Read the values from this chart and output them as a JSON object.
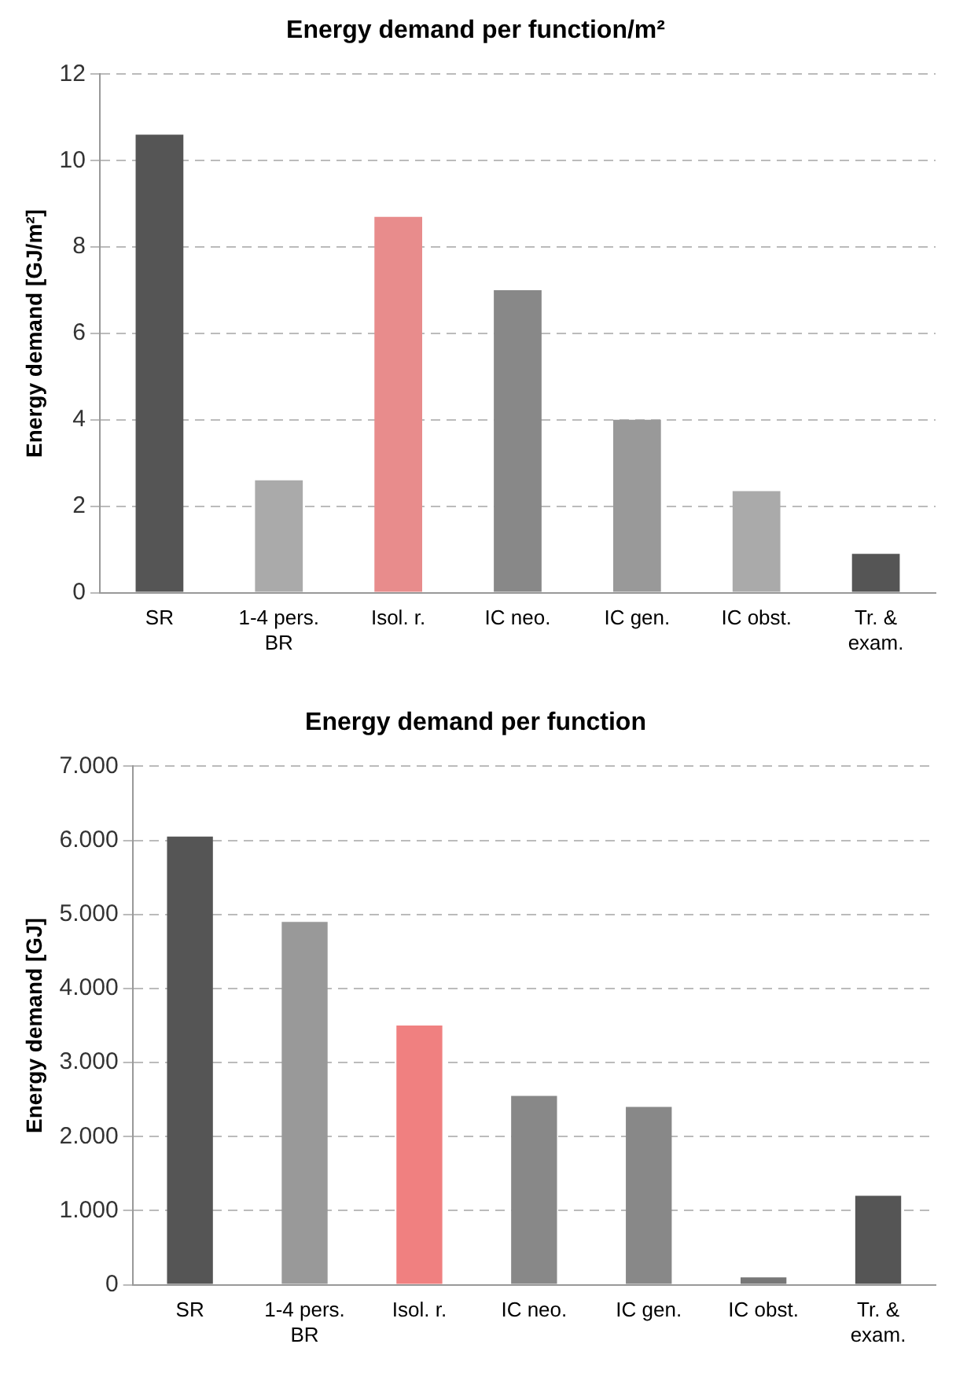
{
  "chart_data": [
    {
      "type": "bar",
      "title": "Energy demand per function/m²",
      "ylabel": "Energy demand [GJ/m²]",
      "categories": [
        "SR",
        "1-4 pers. BR",
        "Isol. r.",
        "IC neo.",
        "IC gen.",
        "IC obst.",
        "Tr. & exam."
      ],
      "values": [
        10.6,
        2.6,
        8.7,
        7.0,
        4.0,
        2.35,
        0.9
      ],
      "colors": [
        "#555555",
        "#aaaaaa",
        "#e88c8c",
        "#888888",
        "#999999",
        "#aaaaaa",
        "#555555"
      ],
      "ylim": [
        0,
        12
      ],
      "yticks": [
        0,
        2,
        4,
        6,
        8,
        10,
        12
      ],
      "grid": "y"
    },
    {
      "type": "bar",
      "title": "Energy demand per function",
      "ylabel": "Energy demand [GJ]",
      "categories": [
        "SR",
        "1-4 pers. BR",
        "Isol. r.",
        "IC neo.",
        "IC gen.",
        "IC obst.",
        "Tr. & exam."
      ],
      "values": [
        6050,
        4900,
        3500,
        2550,
        2400,
        100,
        1200
      ],
      "colors": [
        "#555555",
        "#999999",
        "#f08080",
        "#888888",
        "#888888",
        "#777777",
        "#555555"
      ],
      "ylim": [
        0,
        7000
      ],
      "yticks": [
        0,
        {
          "value": 1000,
          "label": "1.000"
        },
        {
          "value": 2000,
          "label": "2.000"
        },
        {
          "value": 3000,
          "label": "3.000"
        },
        {
          "value": 4000,
          "label": "4.000"
        },
        {
          "value": 5000,
          "label": "5.000"
        },
        {
          "value": 6000,
          "label": "6.000"
        },
        {
          "value": 7000,
          "label": "7.000"
        }
      ],
      "grid": "y"
    }
  ]
}
